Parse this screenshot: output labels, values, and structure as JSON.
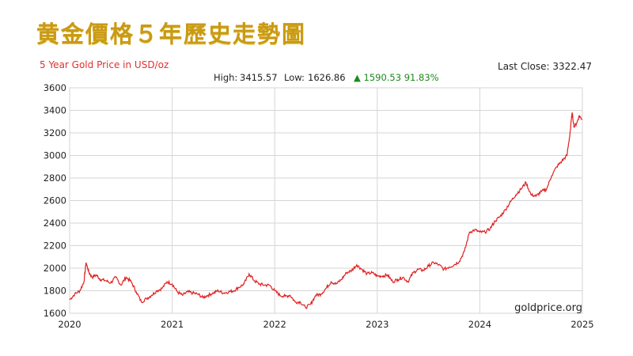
{
  "page": {
    "title": "黄金價格５年歷史走勢圖"
  },
  "chart_data": {
    "type": "line",
    "title": "5 Year Gold Price in USD/oz",
    "last_close": "Last Close: 3322.47",
    "stats": {
      "high_label": "High:",
      "high": "3415.57",
      "low_label": "Low:",
      "low": "1626.86",
      "change": "▲ 1590.53 91.83%"
    },
    "watermark": "goldprice.org",
    "line_color": "#e02020",
    "grid": true,
    "xlim": [
      2020,
      2025
    ],
    "ylim": [
      1600,
      3600
    ],
    "x_ticks": [
      "2020",
      "2021",
      "2022",
      "2023",
      "2024",
      "2025"
    ],
    "y_ticks": [
      "1600",
      "1800",
      "2000",
      "2200",
      "2400",
      "2600",
      "2800",
      "3000",
      "3200",
      "3400",
      "3600"
    ],
    "series": [
      {
        "x": [
          2020.0,
          2020.05,
          2020.1,
          2020.14,
          2020.16,
          2020.19,
          2020.22,
          2020.26,
          2020.3,
          2020.35,
          2020.4,
          2020.45,
          2020.5,
          2020.55,
          2020.6,
          2020.65,
          2020.7,
          2020.75,
          2020.8,
          2020.85,
          2020.9,
          2020.95,
          2021.0,
          2021.05,
          2021.1,
          2021.15,
          2021.2,
          2021.25,
          2021.3,
          2021.35,
          2021.4,
          2021.45,
          2021.5,
          2021.55,
          2021.6,
          2021.65,
          2021.7,
          2021.75,
          2021.8,
          2021.85,
          2021.9,
          2021.95,
          2022.0,
          2022.05,
          2022.1,
          2022.15,
          2022.2,
          2022.25,
          2022.3,
          2022.35,
          2022.4,
          2022.45,
          2022.5,
          2022.55,
          2022.6,
          2022.65,
          2022.7,
          2022.75,
          2022.8,
          2022.85,
          2022.9,
          2022.95,
          2023.0,
          2023.05,
          2023.1,
          2023.15,
          2023.2,
          2023.25,
          2023.3,
          2023.35,
          2023.4,
          2023.45,
          2023.5,
          2023.55,
          2023.6,
          2023.65,
          2023.7,
          2023.75,
          2023.8,
          2023.85,
          2023.9,
          2023.95,
          2024.0,
          2024.05,
          2024.1,
          2024.15,
          2024.2,
          2024.25,
          2024.3,
          2024.35,
          2024.4,
          2024.45,
          2024.5,
          2024.55,
          2024.6,
          2024.65,
          2024.7,
          2024.75,
          2024.8,
          2024.85,
          2024.88,
          2024.9,
          2024.92,
          2024.95,
          2024.97,
          2025.0
        ],
        "values": [
          1720,
          1770,
          1800,
          1880,
          2050,
          1960,
          1920,
          1940,
          1900,
          1890,
          1870,
          1920,
          1850,
          1920,
          1880,
          1790,
          1700,
          1730,
          1760,
          1800,
          1820,
          1880,
          1860,
          1790,
          1760,
          1790,
          1780,
          1770,
          1740,
          1760,
          1780,
          1800,
          1780,
          1790,
          1800,
          1830,
          1860,
          1950,
          1890,
          1860,
          1850,
          1850,
          1800,
          1760,
          1750,
          1760,
          1700,
          1700,
          1650,
          1680,
          1760,
          1770,
          1820,
          1880,
          1860,
          1900,
          1960,
          1980,
          2030,
          1990,
          1950,
          1960,
          1930,
          1930,
          1940,
          1880,
          1900,
          1920,
          1880,
          1960,
          1990,
          1980,
          2020,
          2050,
          2030,
          1990,
          2010,
          2030,
          2060,
          2150,
          2320,
          2340,
          2320,
          2320,
          2350,
          2420,
          2460,
          2520,
          2590,
          2650,
          2700,
          2760,
          2650,
          2640,
          2680,
          2700,
          2820,
          2900,
          2950,
          3000,
          3200,
          3380,
          3250,
          3300,
          3350,
          3320
        ]
      }
    ]
  }
}
